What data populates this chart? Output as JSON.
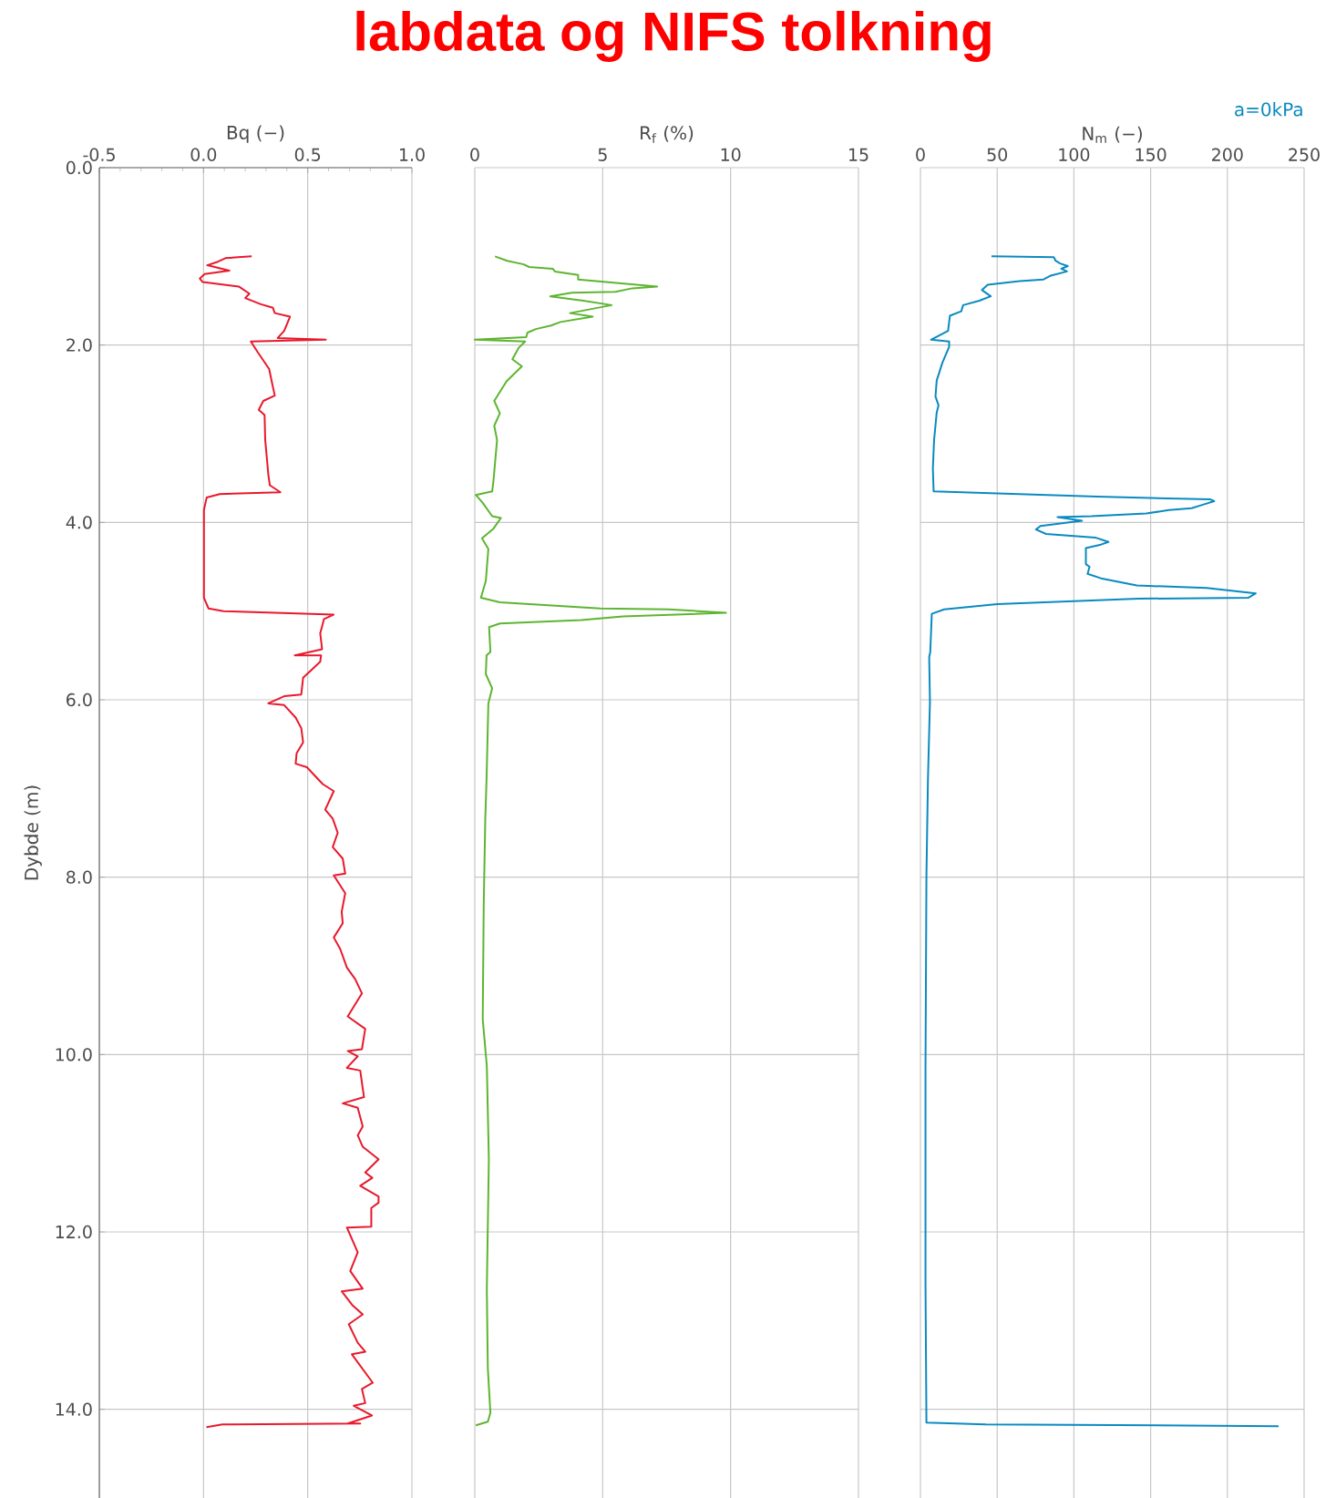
{
  "chart_data": [
    {
      "type": "line",
      "xlabel": "Bq (−)",
      "ylabel": "Dybde (m)",
      "xlim": [
        -0.5,
        1.0
      ],
      "ylim": [
        15,
        0
      ],
      "grid": true,
      "xticks": [
        -0.5,
        {
          "value": 0,
          "label": "0.0"
        },
        0.5,
        {
          "value": 1,
          "label": "1.0"
        }
      ],
      "yticks": [
        {
          "value": 0,
          "label": "0.0"
        },
        {
          "value": 2,
          "label": "2.0"
        },
        {
          "value": 4,
          "label": "4.0"
        },
        {
          "value": 6,
          "label": "6.0"
        },
        {
          "value": 8,
          "label": "8.0"
        },
        {
          "value": 10,
          "label": "10.0"
        },
        {
          "value": 12,
          "label": "12.0"
        },
        {
          "value": 14,
          "label": "14.0"
        }
      ],
      "series": [
        {
          "color": "#e8192c",
          "x": [
            0.231,
            0.105,
            0.069,
            0.018,
            0.124,
            0.005,
            -0.018,
            -0.004,
            0.169,
            0.22,
            0.2,
            0.275,
            0.333,
            0.342,
            0.415,
            0.387,
            0.356,
            0.587,
            0.227,
            0.26,
            0.315,
            0.329,
            0.342,
            0.287,
            0.265,
            0.293,
            0.296,
            0.311,
            0.318,
            0.369,
            0.078,
            0.015,
            0.002,
            0.002,
            0.024,
            0.096,
            0.624,
            0.578,
            0.56,
            0.569,
            0.438,
            0.564,
            0.56,
            0.478,
            0.469,
            0.387,
            0.311,
            0.387,
            0.442,
            0.469,
            0.478,
            0.447,
            0.442,
            0.496,
            0.572,
            0.625,
            0.584,
            0.62,
            0.644,
            0.62,
            0.668,
            0.68,
            0.625,
            0.68,
            0.663,
            0.668,
            0.625,
            0.656,
            0.688,
            0.728,
            0.76,
            0.692,
            0.776,
            0.76,
            0.692,
            0.74,
            0.688,
            0.752,
            0.77,
            0.668,
            0.74,
            0.764,
            0.74,
            0.764,
            0.84,
            0.776,
            0.81,
            0.752,
            0.84,
            0.84,
            0.805,
            0.805,
            0.688,
            0.74,
            0.704,
            0.764,
            0.663,
            0.716,
            0.764,
            0.697,
            0.74,
            0.776,
            0.712,
            0.812,
            0.76,
            0.776,
            0.721,
            0.808,
            0.692,
            0.752,
            0.091,
            0.014
          ],
          "values": [
            1.0,
            1.02,
            1.06,
            1.1,
            1.16,
            1.2,
            1.25,
            1.29,
            1.34,
            1.42,
            1.47,
            1.54,
            1.58,
            1.64,
            1.68,
            1.84,
            1.92,
            1.94,
            1.96,
            2.08,
            2.27,
            2.43,
            2.57,
            2.63,
            2.73,
            2.79,
            3.07,
            3.46,
            3.58,
            3.66,
            3.68,
            3.72,
            3.86,
            4.85,
            4.97,
            5.0,
            5.04,
            5.09,
            5.25,
            5.43,
            5.5,
            5.5,
            5.57,
            5.75,
            5.94,
            5.96,
            6.04,
            6.06,
            6.2,
            6.32,
            6.48,
            6.6,
            6.72,
            6.76,
            6.95,
            7.03,
            7.24,
            7.34,
            7.5,
            7.66,
            7.79,
            7.96,
            7.98,
            8.18,
            8.39,
            8.52,
            8.68,
            8.81,
            9.02,
            9.15,
            9.31,
            9.57,
            9.71,
            9.94,
            9.96,
            10.02,
            10.15,
            10.18,
            10.48,
            10.55,
            10.6,
            10.81,
            10.91,
            11.04,
            11.18,
            11.33,
            11.39,
            11.48,
            11.6,
            11.67,
            11.73,
            11.94,
            11.95,
            12.23,
            12.44,
            12.64,
            12.67,
            12.83,
            12.93,
            13.04,
            13.25,
            13.35,
            13.38,
            13.7,
            13.77,
            13.93,
            13.96,
            14.07,
            14.16,
            14.16,
            14.17,
            14.2
          ]
        }
      ]
    },
    {
      "type": "line",
      "title": "labdata og NIFS tolkning",
      "xlabel": "R$_{f}$ (%)",
      "xlim": [
        0,
        15
      ],
      "ylim": [
        15,
        0
      ],
      "grid": true,
      "tick_labels": "x",
      "xticks": [
        0,
        5,
        10,
        15
      ],
      "yticks": [
        0,
        2,
        4,
        6,
        8,
        10,
        12,
        14
      ],
      "series": [
        {
          "color": "#5db531",
          "x": [
            0.79,
            1.27,
            1.91,
            2.12,
            3.05,
            3.13,
            4.04,
            4.04,
            7.13,
            6.16,
            5.5,
            3.79,
            2.95,
            4.24,
            5.35,
            3.72,
            4.61,
            3.35,
            2.98,
            2.39,
            2.06,
            2.01,
            0.0,
            1.97,
            1.72,
            1.47,
            1.84,
            1.24,
            0.76,
            0.98,
            0.76,
            0.87,
            0.73,
            0.68,
            0.04,
            0.31,
            0.68,
            1.02,
            0.73,
            0.28,
            0.53,
            0.43,
            0.24,
            0.98,
            4.9,
            7.57,
            9.82,
            5.79,
            4.16,
            0.98,
            0.56,
            0.61,
            0.46,
            0.43,
            0.68,
            0.53,
            0.46,
            0.41,
            0.35,
            0.31,
            0.47,
            0.55,
            0.47,
            0.51,
            0.61,
            0.51,
            0.04
          ],
          "values": [
            1.0,
            1.05,
            1.09,
            1.12,
            1.14,
            1.17,
            1.21,
            1.26,
            1.34,
            1.36,
            1.4,
            1.41,
            1.45,
            1.5,
            1.55,
            1.64,
            1.68,
            1.74,
            1.78,
            1.82,
            1.86,
            1.91,
            1.94,
            1.96,
            2.03,
            2.16,
            2.24,
            2.41,
            2.63,
            2.77,
            2.91,
            3.07,
            3.53,
            3.65,
            3.69,
            3.78,
            3.93,
            3.95,
            4.07,
            4.18,
            4.3,
            4.66,
            4.85,
            4.9,
            4.97,
            4.98,
            5.02,
            5.06,
            5.1,
            5.14,
            5.18,
            5.46,
            5.5,
            5.71,
            5.87,
            6.04,
            6.89,
            7.34,
            8.29,
            9.6,
            10.13,
            11.18,
            12.65,
            13.54,
            14.04,
            14.14,
            14.18
          ]
        }
      ]
    },
    {
      "type": "line",
      "xlabel": "N$_{m}$ (−)",
      "xlim": [
        0,
        250
      ],
      "ylim": [
        15,
        0
      ],
      "grid": true,
      "tick_labels": "x",
      "xticks": [
        0,
        50,
        100,
        150,
        200,
        250
      ],
      "yticks": [
        0,
        2,
        4,
        6,
        8,
        10,
        12,
        14
      ],
      "annotations": [
        "a=0kPa"
      ],
      "series": [
        {
          "color": "#0a8ac0",
          "x": [
            46.3,
            86.9,
            88.1,
            91.0,
            96.0,
            91.8,
            95.5,
            84.4,
            80.2,
            64.7,
            43.8,
            40.1,
            45.8,
            38.4,
            27.8,
            26.6,
            19.2,
            18.0,
            6.9,
            18.7,
            18.7,
            14.3,
            10.6,
            9.8,
            11.8,
            10.6,
            8.9,
            8.1,
            8.6,
            115.2,
            189.0,
            191.4,
            184.1,
            176.7,
            161.9,
            147.1,
            111.5,
            89.3,
            105.3,
            78.2,
            75.3,
            81.9,
            113.9,
            122.5,
            117.6,
            107.8,
            107.8,
            110.2,
            108.9,
            117.6,
            141.0,
            186.5,
            218.5,
            213.6,
            142.2,
            50.0,
            15.5,
            7.4,
            6.4,
            5.7,
            6.2,
            4.9,
            3.9,
            3.3,
            3.3,
            3.9,
            42.7,
            233.4
          ],
          "values": [
            1.0,
            1.01,
            1.05,
            1.08,
            1.11,
            1.14,
            1.17,
            1.22,
            1.26,
            1.28,
            1.32,
            1.38,
            1.45,
            1.5,
            1.55,
            1.62,
            1.67,
            1.84,
            1.94,
            1.96,
            2.02,
            2.2,
            2.4,
            2.58,
            2.68,
            2.76,
            3.07,
            3.39,
            3.65,
            3.71,
            3.74,
            3.76,
            3.8,
            3.84,
            3.86,
            3.9,
            3.93,
            3.94,
            3.98,
            4.04,
            4.08,
            4.13,
            4.17,
            4.22,
            4.25,
            4.29,
            4.47,
            4.5,
            4.58,
            4.63,
            4.71,
            4.74,
            4.8,
            4.85,
            4.86,
            4.92,
            4.98,
            5.03,
            5.46,
            5.52,
            6.02,
            6.89,
            7.99,
            10.14,
            12.58,
            14.15,
            14.17,
            14.19
          ]
        }
      ]
    }
  ]
}
